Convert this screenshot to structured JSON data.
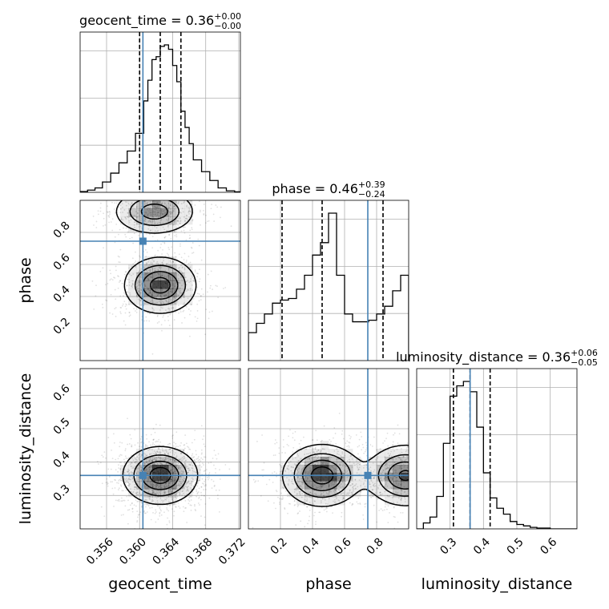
{
  "chart_data": {
    "type": "corner",
    "parameters": [
      "geocent_time",
      "phase",
      "luminosity_distance"
    ],
    "truths": [
      0.3604,
      0.745,
      0.36
    ],
    "truth_color": "#4682b4",
    "titles": [
      {
        "label": "geocent_time",
        "median": "0.36",
        "plus": "+0.00",
        "minus": "−0.00"
      },
      {
        "label": "phase",
        "median": "0.46",
        "plus": "+0.39",
        "minus": "−0.24"
      },
      {
        "label": "luminosity_distance",
        "median": "0.36",
        "plus": "+0.06",
        "minus": "−0.05"
      }
    ],
    "axes": {
      "geocent_time": {
        "range": [
          0.3528,
          0.3722
        ],
        "ticks": [
          0.356,
          0.36,
          0.364,
          0.368,
          0.372
        ],
        "tick_labels": [
          "0.356",
          "0.360",
          "0.364",
          "0.368",
          "0.372"
        ]
      },
      "phase": {
        "range": [
          0.0,
          1.0
        ],
        "ticks": [
          0.2,
          0.4,
          0.6,
          0.8
        ],
        "tick_labels": [
          "0.2",
          "0.4",
          "0.6",
          "0.8"
        ]
      },
      "luminosity_distance": {
        "range": [
          0.2,
          0.68
        ],
        "ticks": [
          0.3,
          0.4,
          0.5,
          0.6
        ],
        "tick_labels": [
          "0.3",
          "0.4",
          "0.5",
          "0.6"
        ]
      }
    },
    "marginals": [
      {
        "parameter": "geocent_time",
        "quantiles": [
          0.36,
          0.3625,
          0.365
        ],
        "bin_edges": [
          0.3528,
          0.3537,
          0.3546,
          0.3555,
          0.3565,
          0.3575,
          0.3585,
          0.3595,
          0.3605,
          0.361,
          0.3615,
          0.362,
          0.3625,
          0.363,
          0.3635,
          0.364,
          0.3645,
          0.365,
          0.3655,
          0.366,
          0.3665,
          0.3675,
          0.3685,
          0.3695,
          0.3705,
          0.3715,
          0.3722
        ],
        "counts": [
          0.5,
          1.5,
          3,
          7,
          13,
          20,
          28,
          40,
          62,
          76,
          90,
          92,
          99,
          100,
          97,
          86,
          75,
          55,
          44,
          33,
          22,
          14,
          8,
          3,
          1,
          0.3
        ]
      },
      {
        "parameter": "phase",
        "quantiles": [
          0.21,
          0.46,
          0.84
        ],
        "bin_edges": [
          0.0,
          0.05,
          0.1,
          0.15,
          0.2,
          0.25,
          0.3,
          0.35,
          0.4,
          0.45,
          0.5,
          0.55,
          0.6,
          0.65,
          0.7,
          0.75,
          0.8,
          0.85,
          0.9,
          0.95,
          1.0
        ],
        "counts": [
          18,
          24,
          30,
          37,
          39,
          40,
          46,
          55,
          68,
          76,
          95,
          55,
          30,
          25,
          25,
          26,
          30,
          35,
          45,
          55
        ]
      },
      {
        "parameter": "luminosity_distance",
        "quantiles": [
          0.31,
          0.36,
          0.42
        ],
        "bin_edges": [
          0.2,
          0.22,
          0.24,
          0.26,
          0.28,
          0.3,
          0.32,
          0.34,
          0.36,
          0.38,
          0.4,
          0.42,
          0.44,
          0.46,
          0.48,
          0.5,
          0.52,
          0.54,
          0.56,
          0.58,
          0.6,
          0.62,
          0.64,
          0.66,
          0.68
        ],
        "counts": [
          0,
          4,
          8,
          22,
          58,
          90,
          97,
          100,
          93,
          69,
          38,
          21,
          14,
          10,
          5,
          3,
          2,
          1,
          0.5,
          0.5,
          0,
          0,
          0,
          0
        ]
      }
    ],
    "pairs": [
      {
        "x": "geocent_time",
        "y": "phase",
        "modes": [
          {
            "x": 0.3625,
            "y": 0.47,
            "sx": 0.0021,
            "sy": 0.085,
            "w": 1.0
          },
          {
            "x": 0.3618,
            "y": 0.93,
            "sx": 0.0024,
            "sy": 0.07,
            "w": 0.75
          }
        ],
        "levels": [
          0.12,
          0.35,
          0.6,
          0.85
        ]
      },
      {
        "x": "geocent_time",
        "y": "luminosity_distance",
        "modes": [
          {
            "x": 0.3625,
            "y": 0.36,
            "sx": 0.0022,
            "sy": 0.042,
            "w": 1.0
          }
        ],
        "levels": [
          0.12,
          0.35,
          0.6,
          0.85
        ]
      },
      {
        "x": "phase",
        "y": "luminosity_distance",
        "modes": [
          {
            "x": 0.46,
            "y": 0.36,
            "sx": 0.12,
            "sy": 0.045,
            "w": 1.0
          },
          {
            "x": 0.98,
            "y": 0.36,
            "sx": 0.12,
            "sy": 0.045,
            "w": 0.9
          }
        ],
        "levels": [
          0.12,
          0.35,
          0.6,
          0.85
        ]
      }
    ],
    "grid": true
  }
}
